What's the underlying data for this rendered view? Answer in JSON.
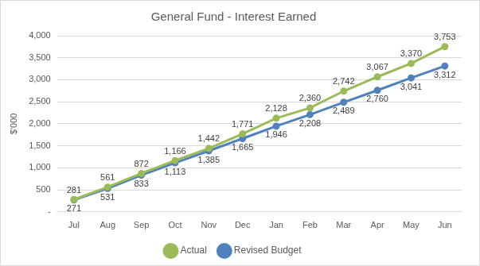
{
  "chart_data": {
    "type": "line",
    "title": "General Fund - Interest Earned",
    "y_label": "$'000",
    "categories": [
      "Jul",
      "Aug",
      "Sep",
      "Oct",
      "Nov",
      "Dec",
      "Jan",
      "Feb",
      "Mar",
      "Apr",
      "May",
      "Jun"
    ],
    "series": [
      {
        "name": "Actual",
        "color": "#9bbb59",
        "marker": "circle",
        "values": [
          281,
          561,
          872,
          1166,
          1442,
          1771,
          2128,
          2360,
          2742,
          3067,
          3370,
          3753
        ],
        "value_labels": [
          "281",
          "561",
          "872",
          "1,166",
          "1,442",
          "1,771",
          "2,128",
          "2,360",
          "2,742",
          "3,067",
          "3,370",
          "3,753"
        ]
      },
      {
        "name": "Revised Budget",
        "color": "#4f81bd",
        "marker": "circle",
        "values": [
          271,
          531,
          833,
          1113,
          1385,
          1665,
          1946,
          2208,
          2489,
          2760,
          3041,
          3312
        ],
        "value_labels": [
          "271",
          "531",
          "833",
          "1,113",
          "1,385",
          "1,665",
          "1,946",
          "2,208",
          "2,489",
          "2,760",
          "3,041",
          "3,312"
        ]
      }
    ],
    "ylim": [
      0,
      4000
    ],
    "yticks": [
      {
        "value": 0,
        "label": "-"
      },
      500,
      {
        "value": 1000,
        "label": "1,000"
      },
      {
        "value": 1500,
        "label": "1,500"
      },
      {
        "value": 2000,
        "label": "2,000"
      },
      {
        "value": 2500,
        "label": "2,500"
      },
      {
        "value": 3000,
        "label": "3,000"
      },
      {
        "value": 3500,
        "label": "3,500"
      },
      {
        "value": 4000,
        "label": "4,000"
      }
    ],
    "grid": true,
    "legend": "bottom",
    "data_labels": true
  }
}
